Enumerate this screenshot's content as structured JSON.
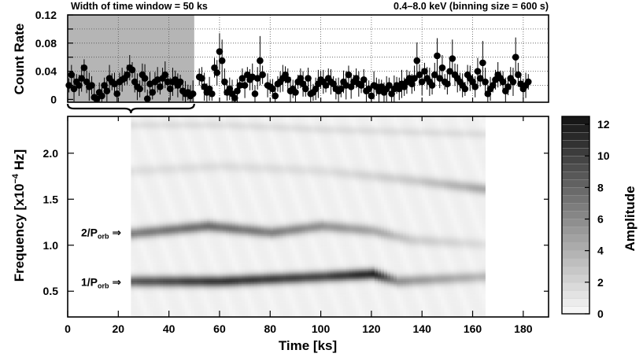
{
  "chart_data": [
    {
      "type": "scatter",
      "panel": "light-curve",
      "title_left": "Width of time window = 50 ks",
      "title_right": "0.4–8.0 keV (binning size = 600 s)",
      "ylabel": "Count Rate",
      "xlim": [
        0,
        190
      ],
      "ylim": [
        -0.004,
        0.12
      ],
      "yticks": [
        "0",
        "0.02",
        "0.04",
        "0.06",
        "0.08",
        "0.1",
        "0.12"
      ],
      "ytick_labels": [
        "0",
        "0.04",
        "0.08",
        "0.12"
      ],
      "grid": true,
      "shaded_window": [
        0,
        50
      ],
      "shade_color": "#b5b5b5",
      "points": [
        [
          0.5,
          0.02
        ],
        [
          1.5,
          0.035
        ],
        [
          2.5,
          0.015
        ],
        [
          3.5,
          0.025
        ],
        [
          4.5,
          0.02
        ],
        [
          5.5,
          0.03
        ],
        [
          6.5,
          0.045
        ],
        [
          7.5,
          0.025
        ],
        [
          8.5,
          0.018
        ],
        [
          9.5,
          0.02
        ],
        [
          10.5,
          0.003
        ],
        [
          11.5,
          0.001
        ],
        [
          12.5,
          0.01
        ],
        [
          13.5,
          0.005
        ],
        [
          14.5,
          0.02
        ],
        [
          15.5,
          0.012
        ],
        [
          16.5,
          0.03
        ],
        [
          17.5,
          0.025
        ],
        [
          18.5,
          0.022
        ],
        [
          19.5,
          0.008
        ],
        [
          20.5,
          0.025
        ],
        [
          21.5,
          0.028
        ],
        [
          22.5,
          0.03
        ],
        [
          23.5,
          0.035
        ],
        [
          24.5,
          0.045
        ],
        [
          25.5,
          0.042
        ],
        [
          26.5,
          0.025
        ],
        [
          27.5,
          0.018
        ],
        [
          28.5,
          0.015
        ],
        [
          29.5,
          0.035
        ],
        [
          30.5,
          0.03
        ],
        [
          31.5,
          0.001
        ],
        [
          32.5,
          0.022
        ],
        [
          33.5,
          0.01
        ],
        [
          34.5,
          0.025
        ],
        [
          35.5,
          0.028
        ],
        [
          36.5,
          0.018
        ],
        [
          37.5,
          0.03
        ],
        [
          38.5,
          0.035
        ],
        [
          39.5,
          0.025
        ],
        [
          40.5,
          0.015
        ],
        [
          41.5,
          0.025
        ],
        [
          42.5,
          0.028
        ],
        [
          43.5,
          0.02
        ],
        [
          44.5,
          0.025
        ],
        [
          45.5,
          0.012
        ],
        [
          46.5,
          0.008
        ],
        [
          47.5,
          0.01
        ],
        [
          48.5,
          0.005
        ],
        [
          49.5,
          0.008
        ],
        [
          52.0,
          0.032
        ],
        [
          53.0,
          0.03
        ],
        [
          54.0,
          0.018
        ],
        [
          55.0,
          0.01
        ],
        [
          56.0,
          0.015
        ],
        [
          57.0,
          0.008
        ],
        [
          58.0,
          0.045
        ],
        [
          59.0,
          0.038
        ],
        [
          60.0,
          0.068
        ],
        [
          61.0,
          0.055
        ],
        [
          62.0,
          0.025
        ],
        [
          63.0,
          0.01
        ],
        [
          64.0,
          0.015
        ],
        [
          65.0,
          0.008
        ],
        [
          66.0,
          0.002
        ],
        [
          67.0,
          0.012
        ],
        [
          68.0,
          0.02
        ],
        [
          69.0,
          0.03
        ],
        [
          70.0,
          0.02
        ],
        [
          71.0,
          0.035
        ],
        [
          72.0,
          0.028
        ],
        [
          73.0,
          0.032
        ],
        [
          74.0,
          0.008
        ],
        [
          75.0,
          0.03
        ],
        [
          76.0,
          0.055
        ],
        [
          77.0,
          0.035
        ],
        [
          79.0,
          0.02
        ],
        [
          80.0,
          0.018
        ],
        [
          81.0,
          0.015
        ],
        [
          82.0,
          0.005
        ],
        [
          83.0,
          0.022
        ],
        [
          84.0,
          0.025
        ],
        [
          85.0,
          0.03
        ],
        [
          86.0,
          0.035
        ],
        [
          87.0,
          0.028
        ],
        [
          88.0,
          0.012
        ],
        [
          89.0,
          0.015
        ],
        [
          90.0,
          0.01
        ],
        [
          91.0,
          0.025
        ],
        [
          92.0,
          0.03
        ],
        [
          93.0,
          0.022
        ],
        [
          94.0,
          0.015
        ],
        [
          95.0,
          0.03
        ],
        [
          96.0,
          0.008
        ],
        [
          97.0,
          0.01
        ],
        [
          98.0,
          0.015
        ],
        [
          99.0,
          0.022
        ],
        [
          100.0,
          0.028
        ],
        [
          101.0,
          0.025
        ],
        [
          102.0,
          0.02
        ],
        [
          103.0,
          0.03
        ],
        [
          104.0,
          0.025
        ],
        [
          105.0,
          0.022
        ],
        [
          106.0,
          0.015
        ],
        [
          107.0,
          0.012
        ],
        [
          108.0,
          0.015
        ],
        [
          109.0,
          0.025
        ],
        [
          110.0,
          0.02
        ],
        [
          111.0,
          0.035
        ],
        [
          112.0,
          0.018
        ],
        [
          113.0,
          0.025
        ],
        [
          114.0,
          0.03
        ],
        [
          115.0,
          0.022
        ],
        [
          116.0,
          0.02
        ],
        [
          117.0,
          0.028
        ],
        [
          118.0,
          0.012
        ],
        [
          119.0,
          0.015
        ],
        [
          120.0,
          0.005
        ],
        [
          121.0,
          0.02
        ],
        [
          122.0,
          0.018
        ],
        [
          123.0,
          0.012
        ],
        [
          124.0,
          0.018
        ],
        [
          125.0,
          0.01
        ],
        [
          126.0,
          0.015
        ],
        [
          127.0,
          0.02
        ],
        [
          128.0,
          0.008
        ],
        [
          129.0,
          0.015
        ],
        [
          130.0,
          0.02
        ],
        [
          131.0,
          0.015
        ],
        [
          132.0,
          0.022
        ],
        [
          133.0,
          0.018
        ],
        [
          134.0,
          0.025
        ],
        [
          135.0,
          0.03
        ],
        [
          136.0,
          0.022
        ],
        [
          137.0,
          0.03
        ],
        [
          138.0,
          0.055
        ],
        [
          139.0,
          0.035
        ],
        [
          140.0,
          0.025
        ],
        [
          141.0,
          0.04
        ],
        [
          142.0,
          0.03
        ],
        [
          143.0,
          0.025
        ],
        [
          144.0,
          0.02
        ],
        [
          145.0,
          0.035
        ],
        [
          146.0,
          0.062
        ],
        [
          147.0,
          0.03
        ],
        [
          148.0,
          0.045
        ],
        [
          149.0,
          0.025
        ],
        [
          150.0,
          0.022
        ],
        [
          151.0,
          0.04
        ],
        [
          152.0,
          0.058
        ],
        [
          153.0,
          0.035
        ],
        [
          154.0,
          0.03
        ],
        [
          155.0,
          0.025
        ],
        [
          156.0,
          0.02
        ],
        [
          157.0,
          0.015
        ],
        [
          158.0,
          0.035
        ],
        [
          159.0,
          0.03
        ],
        [
          160.0,
          0.025
        ],
        [
          161.0,
          0.018
        ],
        [
          162.0,
          0.04
        ],
        [
          163.0,
          0.03
        ],
        [
          164.0,
          0.052
        ],
        [
          165.0,
          0.025
        ],
        [
          166.0,
          0.008
        ],
        [
          167.0,
          0.015
        ],
        [
          168.0,
          0.02
        ],
        [
          169.0,
          0.028
        ],
        [
          170.0,
          0.035
        ],
        [
          171.0,
          0.03
        ],
        [
          172.0,
          0.025
        ],
        [
          173.0,
          0.012
        ],
        [
          174.0,
          0.018
        ],
        [
          175.0,
          0.03
        ],
        [
          176.0,
          0.025
        ],
        [
          177.0,
          0.06
        ],
        [
          178.0,
          0.035
        ],
        [
          179.0,
          0.022
        ],
        [
          180.0,
          0.015
        ],
        [
          181.0,
          0.02
        ],
        [
          182.0,
          0.025
        ]
      ]
    },
    {
      "type": "heatmap",
      "panel": "dynamic-power-spectrum",
      "xlabel": "Time [ks]",
      "ylabel_main": "Frequency [x10",
      "ylabel_exp": "−4",
      "ylabel_unit": " Hz]",
      "xlim": [
        0,
        190
      ],
      "ylim": [
        0.22,
        2.4
      ],
      "xticks": [
        0,
        20,
        40,
        60,
        80,
        100,
        120,
        140,
        160,
        180
      ],
      "xtick_labels": [
        "0",
        "20",
        "40",
        "60",
        "80",
        "100",
        "120",
        "140",
        "160",
        "180"
      ],
      "yticks": [
        0.5,
        1.0,
        1.5,
        2.0
      ],
      "ytick_labels": [
        "0.5",
        "1.0",
        "1.5",
        "2.0"
      ],
      "data_x_range": [
        25,
        165
      ],
      "bands": [
        {
          "points": [
            [
              25,
              0.6
            ],
            [
              60,
              0.6
            ],
            [
              100,
              0.65
            ],
            [
              120,
              0.68
            ],
            [
              130,
              0.6
            ],
            [
              165,
              0.65
            ]
          ],
          "amplitude": [
            8,
            10,
            9,
            11,
            5,
            3
          ],
          "width": 0.06
        },
        {
          "points": [
            [
              25,
              1.12
            ],
            [
              55,
              1.2
            ],
            [
              80,
              1.13
            ],
            [
              100,
              1.2
            ],
            [
              120,
              1.15
            ],
            [
              135,
              1.05
            ],
            [
              165,
              1.0
            ]
          ],
          "amplitude": [
            6,
            7,
            6,
            5,
            4,
            2,
            1
          ],
          "width": 0.06
        },
        {
          "points": [
            [
              25,
              1.8
            ],
            [
              60,
              1.85
            ],
            [
              100,
              1.8
            ],
            [
              135,
              1.7
            ],
            [
              165,
              1.6
            ]
          ],
          "amplitude": [
            1,
            1,
            1,
            2,
            4
          ],
          "width": 0.06
        },
        {
          "points": [
            [
              25,
              2.3
            ],
            [
              60,
              2.3
            ],
            [
              100,
              2.25
            ],
            [
              165,
              2.2
            ]
          ],
          "amplitude": [
            1,
            1,
            1,
            1
          ],
          "width": 0.05
        }
      ],
      "annotations": [
        {
          "main": "1/P",
          "sub": "orb",
          "arrow": "⇒",
          "y": 0.6
        },
        {
          "main": "2/P",
          "sub": "orb",
          "arrow": "⇒",
          "y": 1.14
        }
      ],
      "colorbar": {
        "label": "Amplitude",
        "min": 0,
        "max": 12.5,
        "ticks": [
          0,
          2,
          4,
          6,
          8,
          10,
          12
        ],
        "tick_labels": [
          "0",
          "2",
          "4",
          "6",
          "8",
          "10",
          "12"
        ],
        "levels": 25
      }
    }
  ]
}
